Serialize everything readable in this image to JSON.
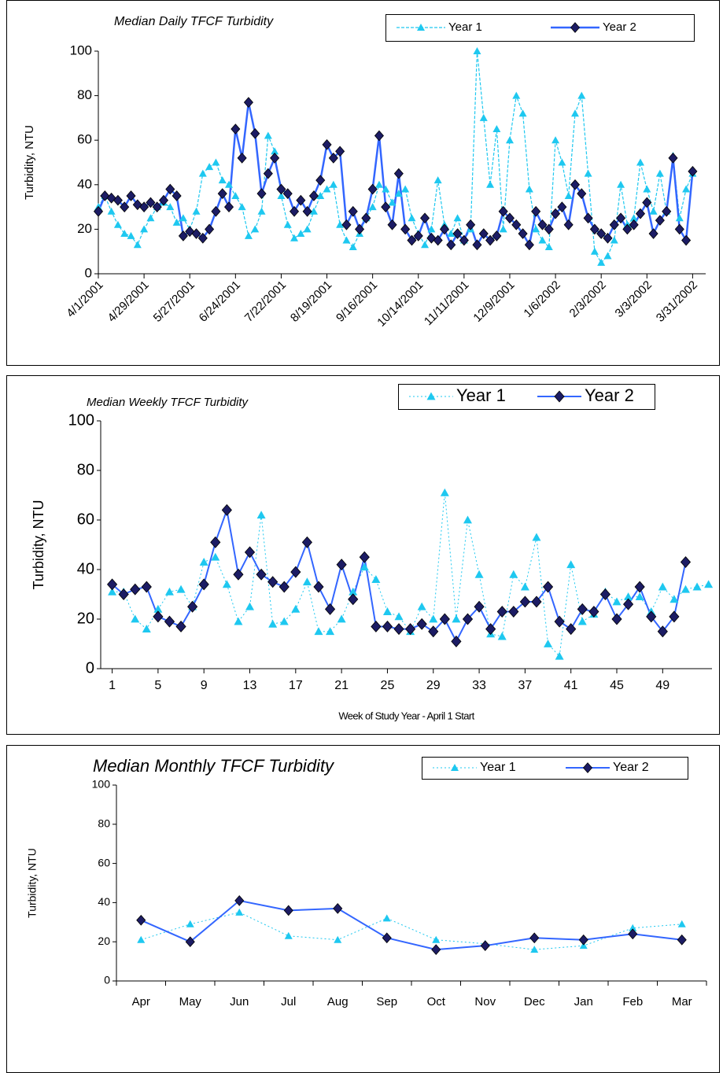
{
  "chart_data": [
    {
      "type": "line",
      "title": "Median Daily TFCF Turbidity",
      "y_label": "Turbidity, NTU",
      "x": [
        "2001-04-01",
        "2001-04-05",
        "2001-04-09",
        "2001-04-13",
        "2001-04-17",
        "2001-04-21",
        "2001-04-25",
        "2001-04-29",
        "2001-05-03",
        "2001-05-07",
        "2001-05-11",
        "2001-05-15",
        "2001-05-19",
        "2001-05-23",
        "2001-05-27",
        "2001-05-31",
        "2001-06-04",
        "2001-06-08",
        "2001-06-12",
        "2001-06-16",
        "2001-06-20",
        "2001-06-24",
        "2001-06-28",
        "2001-07-02",
        "2001-07-06",
        "2001-07-10",
        "2001-07-14",
        "2001-07-18",
        "2001-07-22",
        "2001-07-26",
        "2001-07-30",
        "2001-08-03",
        "2001-08-07",
        "2001-08-11",
        "2001-08-15",
        "2001-08-19",
        "2001-08-23",
        "2001-08-27",
        "2001-08-31",
        "2001-09-04",
        "2001-09-08",
        "2001-09-12",
        "2001-09-16",
        "2001-09-20",
        "2001-09-24",
        "2001-09-28",
        "2001-10-02",
        "2001-10-06",
        "2001-10-10",
        "2001-10-14",
        "2001-10-18",
        "2001-10-22",
        "2001-10-26",
        "2001-10-30",
        "2001-11-03",
        "2001-11-07",
        "2001-11-11",
        "2001-11-15",
        "2001-11-19",
        "2001-11-23",
        "2001-11-27",
        "2001-12-01",
        "2001-12-05",
        "2001-12-09",
        "2001-12-13",
        "2001-12-17",
        "2001-12-21",
        "2001-12-25",
        "2001-12-29",
        "2002-01-02",
        "2002-01-06",
        "2002-01-10",
        "2002-01-14",
        "2002-01-18",
        "2002-01-22",
        "2002-01-26",
        "2002-01-30",
        "2002-02-03",
        "2002-02-07",
        "2002-02-11",
        "2002-02-15",
        "2002-02-19",
        "2002-02-23",
        "2002-02-27",
        "2002-03-03",
        "2002-03-07",
        "2002-03-11",
        "2002-03-15",
        "2002-03-19",
        "2002-03-23",
        "2002-03-27",
        "2002-03-31"
      ],
      "series": [
        {
          "name": "Year 1",
          "color": "#1ec8f0",
          "values": [
            30,
            35,
            28,
            22,
            18,
            17,
            13,
            20,
            25,
            30,
            32,
            30,
            23,
            25,
            20,
            28,
            45,
            48,
            50,
            42,
            40,
            35,
            30,
            17,
            20,
            28,
            62,
            55,
            35,
            22,
            16,
            18,
            20,
            28,
            35,
            38,
            40,
            22,
            15,
            12,
            18,
            25,
            30,
            40,
            38,
            32,
            36,
            38,
            25,
            18,
            13,
            20,
            42,
            22,
            18,
            25,
            15,
            20,
            100,
            70,
            40,
            65,
            20,
            60,
            80,
            72,
            38,
            20,
            15,
            12,
            60,
            50,
            35,
            72,
            80,
            45,
            10,
            5,
            8,
            15,
            40,
            22,
            25,
            50,
            38,
            28,
            45,
            28,
            53,
            25,
            38,
            45
          ]
        },
        {
          "name": "Year 2",
          "color": "#3366ff",
          "values": [
            28,
            35,
            34,
            33,
            30,
            35,
            31,
            30,
            32,
            30,
            33,
            38,
            35,
            17,
            19,
            18,
            16,
            20,
            28,
            36,
            30,
            65,
            52,
            77,
            63,
            36,
            45,
            52,
            38,
            36,
            28,
            33,
            28,
            35,
            42,
            58,
            52,
            55,
            22,
            28,
            20,
            25,
            38,
            62,
            30,
            22,
            45,
            20,
            15,
            17,
            25,
            16,
            15,
            20,
            13,
            18,
            15,
            22,
            13,
            18,
            15,
            17,
            28,
            25,
            22,
            18,
            13,
            28,
            22,
            20,
            27,
            30,
            22,
            40,
            36,
            25,
            20,
            18,
            16,
            22,
            25,
            20,
            22,
            27,
            32,
            18,
            24,
            28,
            52,
            20,
            15,
            46
          ]
        }
      ],
      "xlim": [
        "2001-04-01",
        "2002-04-08"
      ],
      "xticks": [
        {
          "value": "2001-04-01",
          "label": "4/1/2001"
        },
        {
          "value": "2001-04-29",
          "label": "4/29/2001"
        },
        {
          "value": "2001-05-27",
          "label": "5/27/2001"
        },
        {
          "value": "2001-06-24",
          "label": "6/24/2001"
        },
        {
          "value": "2001-07-22",
          "label": "7/22/2001"
        },
        {
          "value": "2001-08-19",
          "label": "8/19/2001"
        },
        {
          "value": "2001-09-16",
          "label": "9/16/2001"
        },
        {
          "value": "2001-10-14",
          "label": "10/14/2001"
        },
        {
          "value": "2001-11-11",
          "label": "11/11/2001"
        },
        {
          "value": "2001-12-09",
          "label": "12/9/2001"
        },
        {
          "value": "2002-01-06",
          "label": "1/6/2002"
        },
        {
          "value": "2002-02-03",
          "label": "2/3/2002"
        },
        {
          "value": "2002-03-03",
          "label": "3/3/2002"
        },
        {
          "value": "2002-03-31",
          "label": "3/31/2002"
        }
      ],
      "ylim": [
        0,
        100
      ],
      "yticks": [
        0,
        20,
        40,
        60,
        80,
        100
      ]
    },
    {
      "type": "line",
      "title": "Median Weekly TFCF Turbidity",
      "y_label": "Turbidity, NTU",
      "x_label": "Week of Study Year - April 1 Start",
      "x": [
        1,
        2,
        3,
        4,
        5,
        6,
        7,
        8,
        9,
        10,
        11,
        12,
        13,
        14,
        15,
        16,
        17,
        18,
        19,
        20,
        21,
        22,
        23,
        24,
        25,
        26,
        27,
        28,
        29,
        30,
        31,
        32,
        33,
        34,
        35,
        36,
        37,
        38,
        39,
        40,
        41,
        42,
        43,
        44,
        45,
        46,
        47,
        48,
        49,
        50,
        51,
        52,
        53
      ],
      "series": [
        {
          "name": "Year 1",
          "color": "#1ec8f0",
          "values": [
            31,
            31,
            20,
            16,
            24,
            31,
            32,
            25,
            43,
            45,
            34,
            19,
            25,
            62,
            18,
            19,
            24,
            35,
            15,
            15,
            20,
            31,
            41,
            36,
            23,
            21,
            15,
            25,
            20,
            71,
            20,
            60,
            38,
            14,
            13,
            38,
            33,
            53,
            10,
            5,
            42,
            19,
            22,
            31,
            27,
            29,
            29,
            23,
            33,
            28,
            32,
            33,
            34
          ]
        },
        {
          "name": "Year 2",
          "color": "#3366ff",
          "values": [
            34,
            30,
            32,
            33,
            21,
            19,
            17,
            25,
            34,
            51,
            64,
            38,
            47,
            38,
            35,
            33,
            39,
            51,
            33,
            24,
            42,
            28,
            45,
            17,
            17,
            16,
            16,
            18,
            15,
            20,
            11,
            20,
            25,
            16,
            23,
            23,
            27,
            27,
            33,
            19,
            16,
            24,
            23,
            30,
            20,
            26,
            33,
            21,
            15,
            21,
            43,
            null,
            null
          ]
        }
      ],
      "xlim": [
        0,
        53.3
      ],
      "xticks": [
        1,
        5,
        9,
        13,
        17,
        21,
        25,
        29,
        33,
        37,
        41,
        45,
        49
      ],
      "ylim": [
        0,
        100
      ],
      "yticks": [
        0,
        20,
        40,
        60,
        80,
        100
      ]
    },
    {
      "type": "line",
      "title": "Median Monthly TFCF Turbidity",
      "y_label": "Turbidity, NTU",
      "categories": [
        "Apr",
        "May",
        "Jun",
        "Jul",
        "Aug",
        "Sep",
        "Oct",
        "Nov",
        "Dec",
        "Jan",
        "Feb",
        "Mar"
      ],
      "series": [
        {
          "name": "Year 1",
          "color": "#1ec8f0",
          "values": [
            21,
            29,
            35,
            23,
            21,
            32,
            21,
            19,
            16,
            18,
            27,
            29
          ]
        },
        {
          "name": "Year 2",
          "color": "#3366ff",
          "values": [
            31,
            20,
            41,
            36,
            37,
            22,
            16,
            18,
            22,
            21,
            24,
            21
          ]
        }
      ],
      "ylim": [
        0,
        100
      ],
      "yticks": [
        0,
        20,
        40,
        60,
        80,
        100
      ]
    }
  ]
}
